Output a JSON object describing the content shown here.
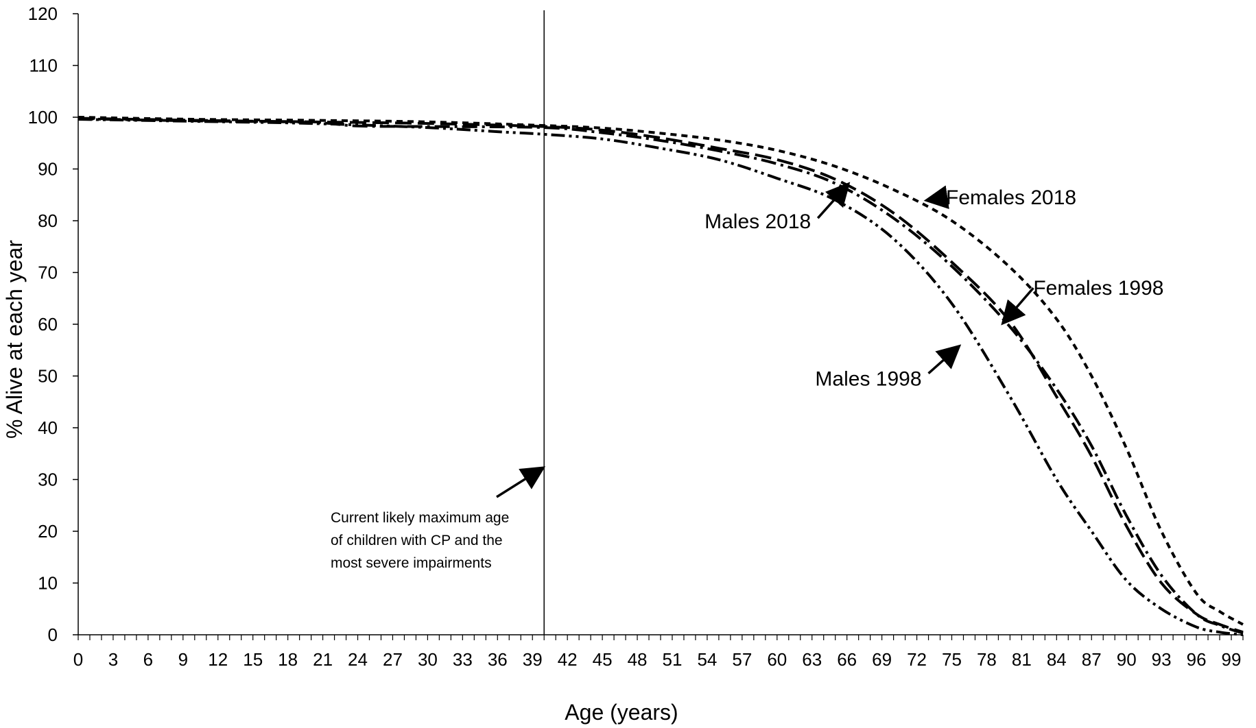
{
  "chart_data": {
    "type": "line",
    "xlabel": "Age (years)",
    "ylabel": "% Alive at each year",
    "xlim": [
      0,
      100
    ],
    "ylim": [
      0,
      120
    ],
    "x_ticks": [
      "0",
      "3",
      "6",
      "9",
      "12",
      "15",
      "18",
      "21",
      "24",
      "27",
      "30",
      "33",
      "36",
      "39",
      "42",
      "45",
      "48",
      "51",
      "54",
      "57",
      "60",
      "63",
      "66",
      "69",
      "72",
      "75",
      "78",
      "81",
      "84",
      "87",
      "90",
      "93",
      "96",
      "99"
    ],
    "y_ticks": [
      "0",
      "10",
      "20",
      "30",
      "40",
      "50",
      "60",
      "70",
      "80",
      "90",
      "100",
      "110",
      "120"
    ],
    "reference_line": {
      "x": 40
    },
    "series": [
      {
        "name": "Females 2018",
        "dash": "short-dash",
        "points": [
          [
            0,
            100
          ],
          [
            10,
            99.6
          ],
          [
            20,
            99.4
          ],
          [
            30,
            99.1
          ],
          [
            40,
            98.4
          ],
          [
            45,
            97.9
          ],
          [
            50,
            96.9
          ],
          [
            55,
            95.6
          ],
          [
            60,
            93.6
          ],
          [
            65,
            90.5
          ],
          [
            70,
            86.0
          ],
          [
            75,
            80.0
          ],
          [
            80,
            71.0
          ],
          [
            84,
            61.0
          ],
          [
            87,
            50.0
          ],
          [
            90,
            36.0
          ],
          [
            93,
            20.0
          ],
          [
            96,
            8.0
          ],
          [
            98,
            4.5
          ],
          [
            100,
            2.0
          ]
        ]
      },
      {
        "name": "Females 1998",
        "dash": "long-dash",
        "points": [
          [
            0,
            99.8
          ],
          [
            10,
            99.4
          ],
          [
            20,
            99.1
          ],
          [
            30,
            98.8
          ],
          [
            40,
            98.2
          ],
          [
            45,
            97.5
          ],
          [
            50,
            96.0
          ],
          [
            55,
            94.0
          ],
          [
            60,
            91.8
          ],
          [
            65,
            88.0
          ],
          [
            70,
            81.5
          ],
          [
            75,
            72.0
          ],
          [
            80,
            60.5
          ],
          [
            84,
            46.0
          ],
          [
            87,
            34.5
          ],
          [
            90,
            21.0
          ],
          [
            93,
            10.0
          ],
          [
            96,
            4.0
          ],
          [
            98,
            2.0
          ],
          [
            100,
            0.5
          ]
        ]
      },
      {
        "name": "Males 2018",
        "dash": "dash-dot",
        "points": [
          [
            0,
            99.7
          ],
          [
            10,
            99.3
          ],
          [
            20,
            99.0
          ],
          [
            24,
            98.3
          ],
          [
            30,
            98.2
          ],
          [
            40,
            98.0
          ],
          [
            45,
            97.0
          ],
          [
            50,
            95.5
          ],
          [
            55,
            93.5
          ],
          [
            60,
            91.0
          ],
          [
            65,
            87.2
          ],
          [
            70,
            80.5
          ],
          [
            75,
            71.2
          ],
          [
            80,
            59.5
          ],
          [
            84,
            47.5
          ],
          [
            87,
            36.5
          ],
          [
            90,
            23.0
          ],
          [
            93,
            11.5
          ],
          [
            96,
            4.0
          ],
          [
            98,
            1.8
          ],
          [
            100,
            0.3
          ]
        ]
      },
      {
        "name": "Males 1998",
        "dash": "dash-dot-dot",
        "points": [
          [
            0,
            99.6
          ],
          [
            10,
            99.2
          ],
          [
            20,
            98.8
          ],
          [
            30,
            98.0
          ],
          [
            36,
            97.2
          ],
          [
            40,
            96.7
          ],
          [
            45,
            95.8
          ],
          [
            50,
            94.0
          ],
          [
            55,
            91.8
          ],
          [
            60,
            88.2
          ],
          [
            65,
            84.0
          ],
          [
            70,
            76.5
          ],
          [
            75,
            64.0
          ],
          [
            80,
            46.0
          ],
          [
            84,
            30.0
          ],
          [
            87,
            20.0
          ],
          [
            90,
            10.5
          ],
          [
            93,
            5.0
          ],
          [
            96,
            1.5
          ],
          [
            98,
            0.5
          ],
          [
            100,
            0.0
          ]
        ]
      }
    ],
    "annotations": [
      {
        "text": "Females 2018",
        "arrow_from": [
          74.5,
          84.5
        ],
        "arrow_to": [
          73.0,
          84.0
        ]
      },
      {
        "text": "Males 2018",
        "arrow_from": [
          63.5,
          80.5
        ],
        "arrow_to": [
          66.0,
          86.8
        ]
      },
      {
        "text": "Females 1998",
        "arrow_from": [
          82.0,
          67.0
        ],
        "arrow_to": [
          79.5,
          60.5
        ]
      },
      {
        "text": "Males 1998",
        "arrow_from": [
          73.0,
          50.5
        ],
        "arrow_to": [
          75.5,
          55.5
        ]
      }
    ],
    "note_lines": [
      "Current likely maximum age",
      "of children with CP and the",
      "most severe impairments"
    ]
  }
}
